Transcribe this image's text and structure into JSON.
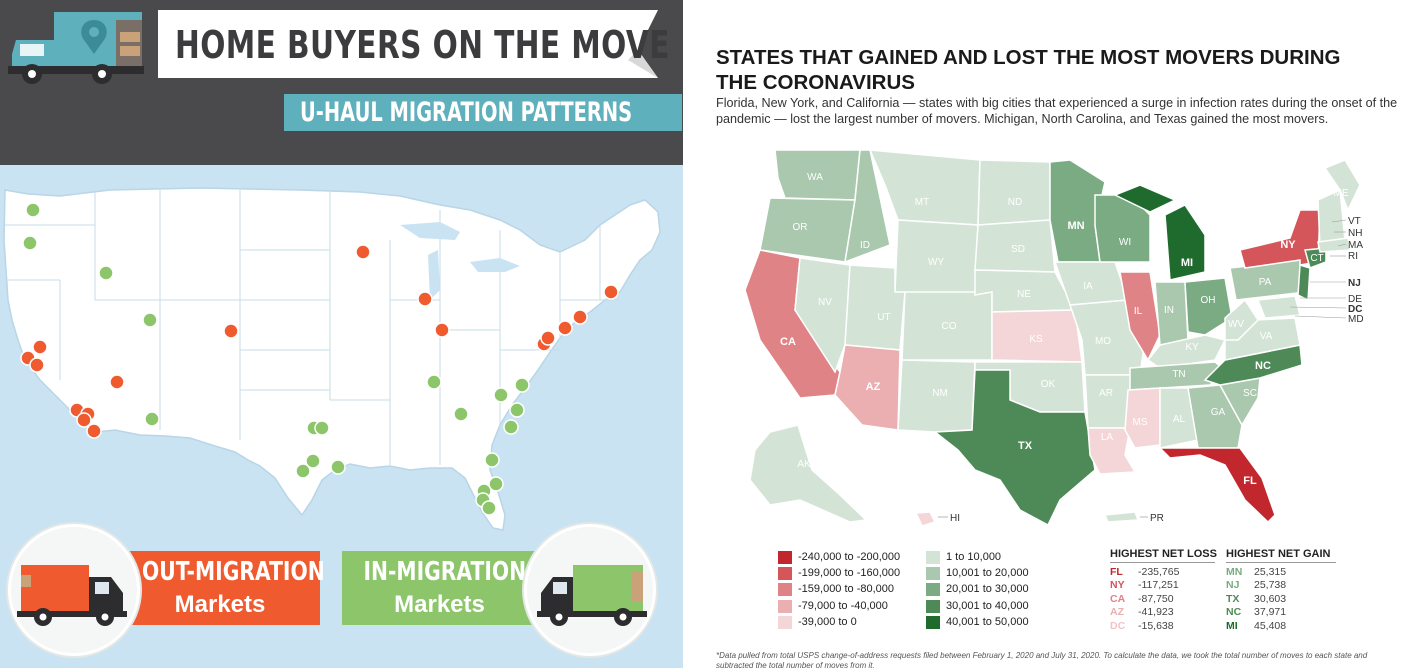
{
  "left_panel": {
    "title": "HOME BUYERS ON THE MOVE",
    "subtitle": "U-HAUL MIGRATION PATTERNS",
    "legend": {
      "out_line1": "OUT-MIGRATION",
      "out_line2": "Markets",
      "in_line1": "IN-MIGRATION",
      "in_line2": "Markets"
    },
    "colors": {
      "out": "#ef5a2e",
      "in": "#8cc56a",
      "header": "#4a4a4c",
      "water": "#c9e3f2"
    }
  },
  "right_panel": {
    "title": "STATES THAT GAINED AND LOST THE MOST MOVERS DURING THE CORONAVIRUS",
    "subtitle": "Florida, New York, and California — states with big cities that experienced a surge in infection rates during the onset of the pandemic — lost the largest number of movers. Michigan, North Carolina, and Texas gained the most movers.",
    "state_labels": {
      "WA": "WA",
      "OR": "OR",
      "CA": "CA",
      "NV": "NV",
      "ID": "ID",
      "MT": "MT",
      "WY": "WY",
      "UT": "UT",
      "AZ": "AZ",
      "CO": "CO",
      "NM": "NM",
      "ND": "ND",
      "SD": "SD",
      "NE": "NE",
      "KS": "KS",
      "OK": "OK",
      "TX": "TX",
      "MN": "MN",
      "IA": "IA",
      "MO": "MO",
      "AR": "AR",
      "LA": "LA",
      "WI": "WI",
      "IL": "IL",
      "MI": "MI",
      "IN": "IN",
      "OH": "OH",
      "KY": "KY",
      "TN": "TN",
      "MS": "MS",
      "AL": "AL",
      "GA": "GA",
      "FL": "FL",
      "SC": "SC",
      "NC": "NC",
      "VA": "VA",
      "WV": "WV",
      "PA": "PA",
      "NY": "NY",
      "CT": "CT",
      "ME": "ME",
      "AK": "AK",
      "HI": "HI",
      "PR": "PR"
    },
    "side_labels": [
      "VT",
      "NH",
      "MA",
      "RI",
      "NJ",
      "DE",
      "DC",
      "MD"
    ],
    "legend_loss": [
      {
        "label": "-240,000 to -200,000",
        "color": "#c1272d"
      },
      {
        "label": "-199,000 to -160,000",
        "color": "#d4555a"
      },
      {
        "label": "-159,000 to -80,000",
        "color": "#e08387"
      },
      {
        "label": "-79,000 to -40,000",
        "color": "#ebaeb1"
      },
      {
        "label": "-39,000 to 0",
        "color": "#f5d6d8"
      }
    ],
    "legend_gain": [
      {
        "label": "1 to 10,000",
        "color": "#d3e3d6"
      },
      {
        "label": "10,001 to 20,000",
        "color": "#a9c8ae"
      },
      {
        "label": "20,001 to 30,000",
        "color": "#7aab82"
      },
      {
        "label": "30,001 to 40,000",
        "color": "#4d8a57"
      },
      {
        "label": "40,001 to 50,000",
        "color": "#1f6b2e"
      }
    ],
    "net_loss": {
      "heading": "HIGHEST NET LOSS",
      "rows": [
        {
          "state": "FL",
          "value": "-235,765",
          "color": "#c1272d"
        },
        {
          "state": "NY",
          "value": "-117,251",
          "color": "#d4555a"
        },
        {
          "state": "CA",
          "value": "-87,750",
          "color": "#e08387"
        },
        {
          "state": "AZ",
          "value": "-41,923",
          "color": "#ebaeb1"
        },
        {
          "state": "DC",
          "value": "-15,638",
          "color": "#f0c4c6"
        }
      ]
    },
    "net_gain": {
      "heading": "HIGHEST NET GAIN",
      "rows": [
        {
          "state": "MN",
          "value": "25,315",
          "color": "#7aab82"
        },
        {
          "state": "NJ",
          "value": "25,738",
          "color": "#7aab82"
        },
        {
          "state": "TX",
          "value": "30,603",
          "color": "#4d8a57"
        },
        {
          "state": "NC",
          "value": "37,971",
          "color": "#4d8a57"
        },
        {
          "state": "MI",
          "value": "45,408",
          "color": "#1f6b2e"
        }
      ]
    },
    "footnote": "*Data pulled from total USPS change-of-address requests filed between February 1, 2020 and July 31, 2020. To calculate the data, we took the total number of moves to each state and subtracted the total number of moves from it."
  }
}
